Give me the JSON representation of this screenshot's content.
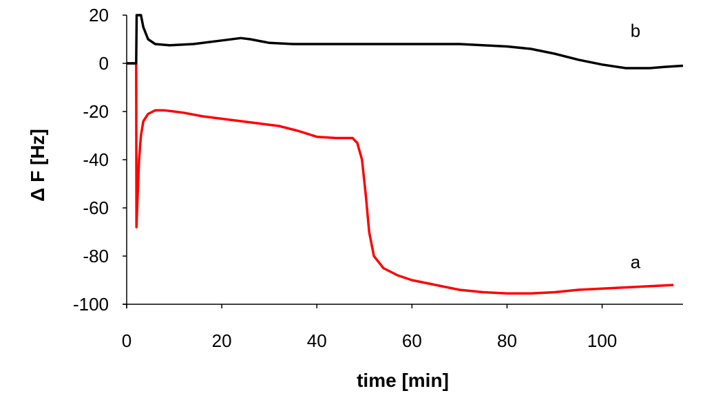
{
  "chart_data": {
    "type": "line",
    "xlabel": "time [min]",
    "ylabel": "Δ F [Hz]",
    "xlim": [
      0,
      117
    ],
    "ylim": [
      -100,
      20
    ],
    "x_ticks": [
      0,
      20,
      40,
      60,
      80,
      100
    ],
    "y_ticks": [
      -100,
      -80,
      -60,
      -40,
      -20,
      0,
      20
    ],
    "grid": false,
    "series": [
      {
        "name": "a",
        "color": "#ff0000",
        "points": [
          [
            0,
            0
          ],
          [
            2,
            0
          ],
          [
            2.05,
            -68
          ],
          [
            2.3,
            -55
          ],
          [
            2.6,
            -40
          ],
          [
            3,
            -30
          ],
          [
            3.5,
            -24
          ],
          [
            4.5,
            -21
          ],
          [
            6,
            -19.5
          ],
          [
            8,
            -19.5
          ],
          [
            12,
            -20.5
          ],
          [
            16,
            -22
          ],
          [
            20,
            -23
          ],
          [
            24,
            -24
          ],
          [
            28,
            -25
          ],
          [
            32,
            -26
          ],
          [
            36,
            -28
          ],
          [
            40,
            -30.5
          ],
          [
            44,
            -31
          ],
          [
            46,
            -31
          ],
          [
            47.5,
            -31
          ],
          [
            48.5,
            -33
          ],
          [
            49.5,
            -40
          ],
          [
            50.3,
            -55
          ],
          [
            51,
            -70
          ],
          [
            52,
            -80
          ],
          [
            54,
            -85
          ],
          [
            57,
            -88
          ],
          [
            60,
            -90
          ],
          [
            65,
            -92
          ],
          [
            70,
            -94
          ],
          [
            75,
            -95
          ],
          [
            80,
            -95.5
          ],
          [
            85,
            -95.5
          ],
          [
            90,
            -95
          ],
          [
            95,
            -94
          ],
          [
            100,
            -93.5
          ],
          [
            105,
            -93
          ],
          [
            110,
            -92.5
          ],
          [
            115,
            -92
          ]
        ]
      },
      {
        "name": "b",
        "color": "#000000",
        "points": [
          [
            0,
            0
          ],
          [
            2,
            0
          ],
          [
            2.1,
            20
          ],
          [
            3,
            20
          ],
          [
            3.5,
            15
          ],
          [
            4.5,
            10
          ],
          [
            6,
            8
          ],
          [
            9,
            7.5
          ],
          [
            14,
            8
          ],
          [
            20,
            9.5
          ],
          [
            24,
            10.5
          ],
          [
            26,
            10
          ],
          [
            30,
            8.5
          ],
          [
            35,
            8
          ],
          [
            40,
            8
          ],
          [
            50,
            8
          ],
          [
            60,
            8
          ],
          [
            70,
            8
          ],
          [
            80,
            7
          ],
          [
            85,
            6
          ],
          [
            90,
            4
          ],
          [
            95,
            1.5
          ],
          [
            100,
            -0.5
          ],
          [
            105,
            -2
          ],
          [
            110,
            -2
          ],
          [
            113,
            -1.5
          ],
          [
            117,
            -1
          ]
        ]
      }
    ],
    "series_label_positions": {
      "a": [
        107,
        -85
      ],
      "b": [
        107,
        11
      ]
    }
  }
}
